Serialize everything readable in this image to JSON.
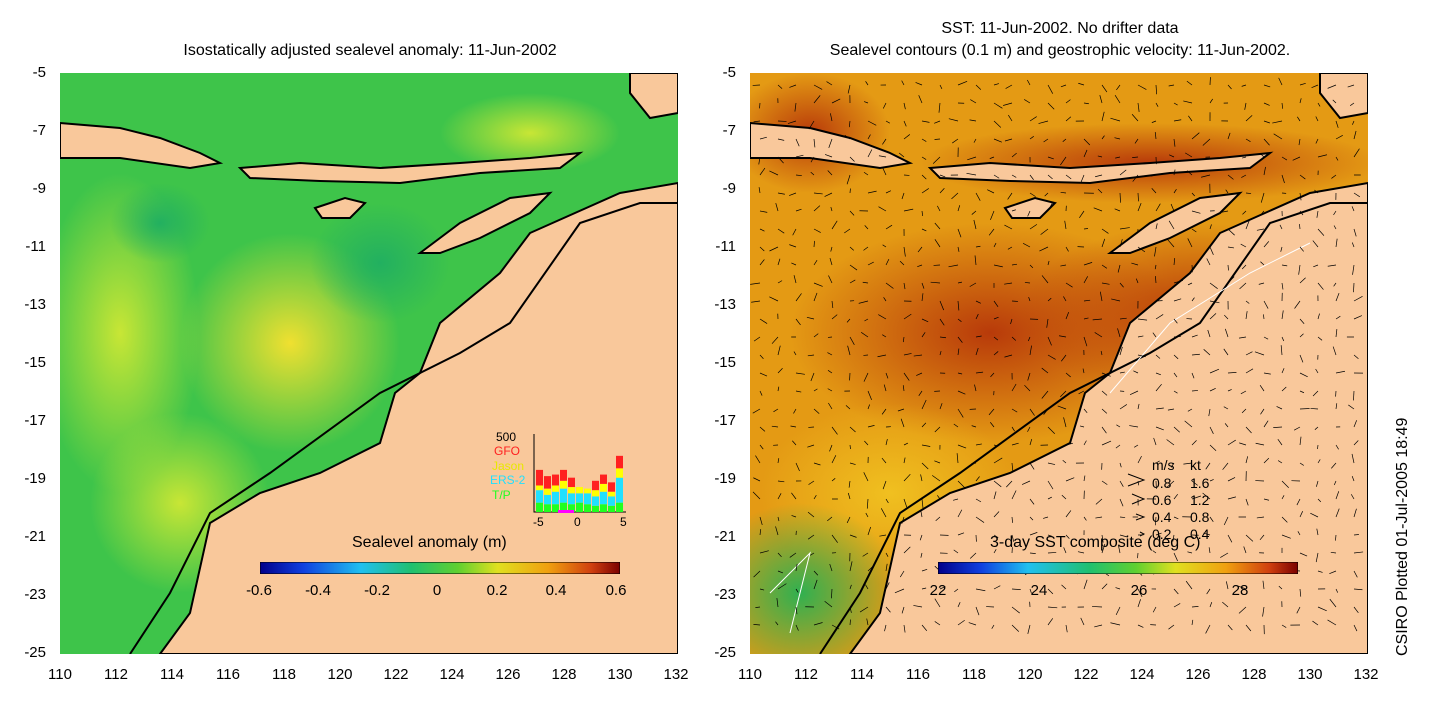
{
  "left_panel": {
    "title": "Isostatically adjusted sealevel anomaly: 11-Jun-2002",
    "colorbar": {
      "label": "Sealevel anomaly (m)",
      "ticks": [
        "-0.6",
        "-0.4",
        "-0.2",
        "0",
        "0.2",
        "0.4",
        "0.6"
      ]
    },
    "inset": {
      "max_label": "500",
      "x_ticks": [
        "-5",
        "0",
        "5"
      ],
      "series": [
        {
          "name": "GFO",
          "color": "#ff2020"
        },
        {
          "name": "Jason",
          "color": "#ffff00"
        },
        {
          "name": "ERS-2",
          "color": "#20e0ff"
        },
        {
          "name": "T/P",
          "color": "#20ff20"
        }
      ]
    }
  },
  "right_panel": {
    "title_line1": "SST: 11-Jun-2002. No drifter data",
    "title_line2": "Sealevel contours (0.1 m) and geostrophic velocity: 11-Jun-2002.",
    "colorbar": {
      "label": "3-day SST composite (deg C)",
      "ticks": [
        "22",
        "24",
        "26",
        "28"
      ]
    },
    "velocity_legend": {
      "header_ms": "m/s",
      "header_kt": "kt",
      "rows": [
        {
          "ms": "0.8",
          "kt": "1.6"
        },
        {
          "ms": "0.6",
          "kt": "1.2"
        },
        {
          "ms": "0.4",
          "kt": "0.8"
        },
        {
          "ms": "0.2",
          "kt": "0.4"
        }
      ]
    }
  },
  "axes": {
    "y_ticks": [
      "-5",
      "-7",
      "-9",
      "-11",
      "-13",
      "-15",
      "-17",
      "-19",
      "-21",
      "-23",
      "-25"
    ],
    "x_ticks": [
      "110",
      "112",
      "114",
      "116",
      "118",
      "120",
      "122",
      "124",
      "126",
      "128",
      "130",
      "132"
    ]
  },
  "credit": "CSIRO Plotted 01-Jul-2005 18:49",
  "colors": {
    "land": "#f9c89b",
    "sla_background": "#3ec44a",
    "sst_background": "#e49a14"
  },
  "chart_data": [
    {
      "type": "heatmap",
      "title": "Isostatically adjusted sealevel anomaly: 11-Jun-2002",
      "xlabel": "",
      "ylabel": "",
      "xlim": [
        110,
        132
      ],
      "ylim": [
        -25,
        -5
      ],
      "colorbar_label": "Sealevel anomaly (m)",
      "colorbar_range": [
        -0.6,
        0.6
      ],
      "grid": false
    },
    {
      "type": "bar",
      "x_ticks": [
        -5,
        0,
        5
      ],
      "ymax": 500,
      "legend": [
        "GFO",
        "Jason",
        "ERS-2",
        "T/P"
      ],
      "categories": [
        -6,
        -5,
        -4,
        -3,
        -2,
        -1,
        0,
        1,
        2,
        3,
        4
      ],
      "series": [
        {
          "name": "T/P",
          "values": [
            60,
            50,
            50,
            60,
            50,
            60,
            50,
            40,
            50,
            40,
            60
          ]
        },
        {
          "name": "ERS-2",
          "values": [
            80,
            60,
            80,
            90,
            70,
            60,
            70,
            60,
            80,
            60,
            160
          ]
        },
        {
          "name": "Jason",
          "values": [
            30,
            40,
            40,
            50,
            40,
            40,
            30,
            40,
            50,
            30,
            60
          ]
        },
        {
          "name": "GFO",
          "values": [
            100,
            80,
            70,
            70,
            60,
            0,
            0,
            60,
            60,
            60,
            80
          ]
        }
      ]
    },
    {
      "type": "heatmap",
      "title": "SST: 11-Jun-2002. No drifter data",
      "xlabel": "",
      "ylabel": "",
      "xlim": [
        110,
        132
      ],
      "ylim": [
        -25,
        -5
      ],
      "colorbar_label": "3-day SST composite (deg C)",
      "colorbar_range": [
        21.5,
        29.5
      ],
      "grid": false
    }
  ]
}
